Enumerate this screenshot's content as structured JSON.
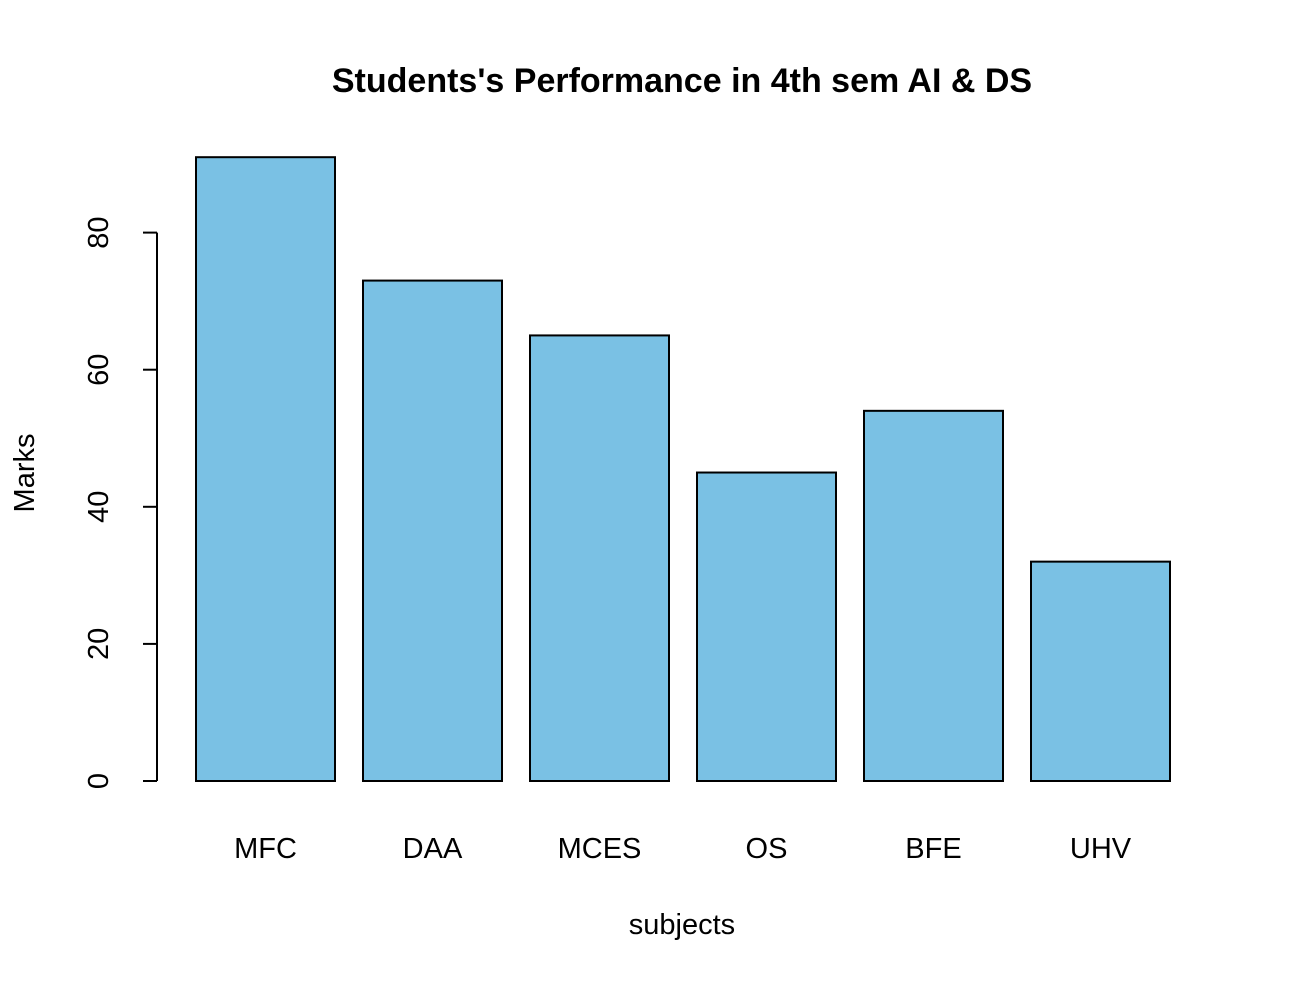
{
  "chart_data": {
    "type": "bar",
    "title": "Students's Performance in 4th sem AI & DS",
    "xlabel": "subjects",
    "ylabel": "Marks",
    "categories": [
      "MFC",
      "DAA",
      "MCES",
      "OS",
      "BFE",
      "UHV"
    ],
    "values": [
      91,
      73,
      65,
      45,
      54,
      32
    ],
    "yticks": [
      0,
      20,
      40,
      60,
      80
    ],
    "ylim": [
      0,
      91
    ],
    "grid": false,
    "legend": "none",
    "bar_color": "#7AC1E4",
    "bar_edge_color": "#000000"
  }
}
